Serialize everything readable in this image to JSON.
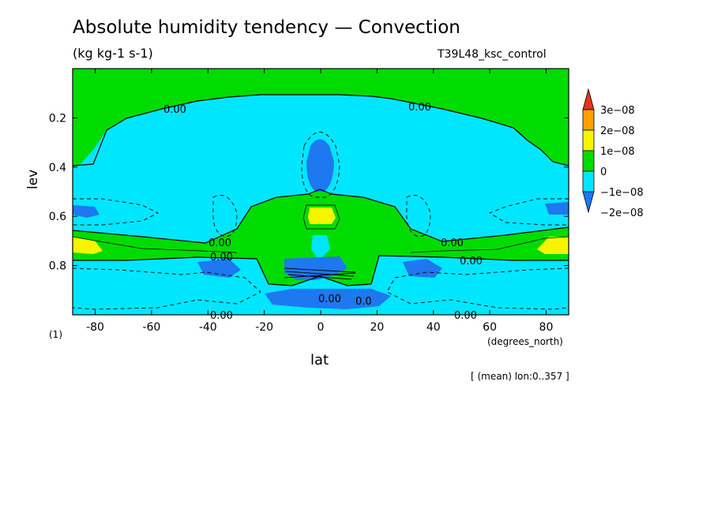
{
  "header": {
    "title": "Absolute humidity tendency — Convection",
    "units": "(kg kg-1 s-1)",
    "run": "T39L48_ksc_control"
  },
  "footer": {
    "mean_note": "[ (mean) lon:0..357 ]",
    "level_index": "(1)"
  },
  "colors": {
    "c_m2": "#1e78f0",
    "c_m1": "#00e6ff",
    "c_0": "#00dc00",
    "c_1": "#f5f500",
    "c_2": "#ffa000",
    "c_3": "#e6321e"
  },
  "chart_data": {
    "type": "contour",
    "title": "Absolute humidity tendency — Convection",
    "units": "(kg kg-1 s-1)",
    "xlabel": "lat",
    "xunits": "(degrees_north)",
    "ylabel": "lev",
    "xlim": [
      -88,
      88
    ],
    "ylim": [
      1.0,
      0.0
    ],
    "y_inverted": true,
    "x_ticks": [
      -80,
      -60,
      -40,
      -20,
      0,
      20,
      40,
      60,
      80
    ],
    "y_ticks": [
      0.2,
      0.4,
      0.6,
      0.8
    ],
    "colorbar": {
      "levels": [
        -2e-08,
        -1e-08,
        0,
        1e-08,
        2e-08,
        3e-08
      ],
      "labels": [
        "−2e−08",
        "−1e−08",
        "0",
        "1e−08",
        "2e−08",
        "3e−08"
      ],
      "colors": [
        "#1e78f0",
        "#00e6ff",
        "#00dc00",
        "#f5f500",
        "#ffa000",
        "#e6321e"
      ]
    },
    "contour_labels": [
      {
        "text": "0.00",
        "lat": -50,
        "lev": 0.18
      },
      {
        "text": "0.00",
        "lat": 35,
        "lev": 0.17
      },
      {
        "text": "0.00",
        "lat": -35,
        "lev": 0.74
      },
      {
        "text": "0.00",
        "lat": -35,
        "lev": 0.78
      },
      {
        "text": "0.00",
        "lat": 47,
        "lev": 0.74
      },
      {
        "text": "0.00",
        "lat": 55,
        "lev": 0.78
      },
      {
        "text": "0.00",
        "lat": -34,
        "lev": 1.0
      },
      {
        "text": "0.00",
        "lat": 49,
        "lev": 1.0
      },
      {
        "text": "0.00",
        "lat": 6,
        "lev": 0.93
      },
      {
        "text": "0.0",
        "lat": 15,
        "lev": 0.95
      }
    ],
    "regions": [
      {
        "value_class": "0",
        "desc": "upper troposphere (lev < ~0.3) mostly 0 to 1e-08"
      },
      {
        "value_class": "-1e-08",
        "desc": "broad band lev 0.3–1.0, -1e-08 to 0"
      },
      {
        "value_class": "-2e-08",
        "desc": "equatorial column near lev 0.3–0.45 below -2e-08"
      },
      {
        "value_class": "1e-08",
        "desc": "equatorial maximum near lev 0.6"
      },
      {
        "value_class": "1e-08",
        "desc": "subtropical lower-level maxima near lat ±83, lev 0.72"
      },
      {
        "value_class": "-2e-08",
        "desc": "near-surface minima lev 0.8–1.0 around lat −35, 0, 35"
      }
    ]
  }
}
